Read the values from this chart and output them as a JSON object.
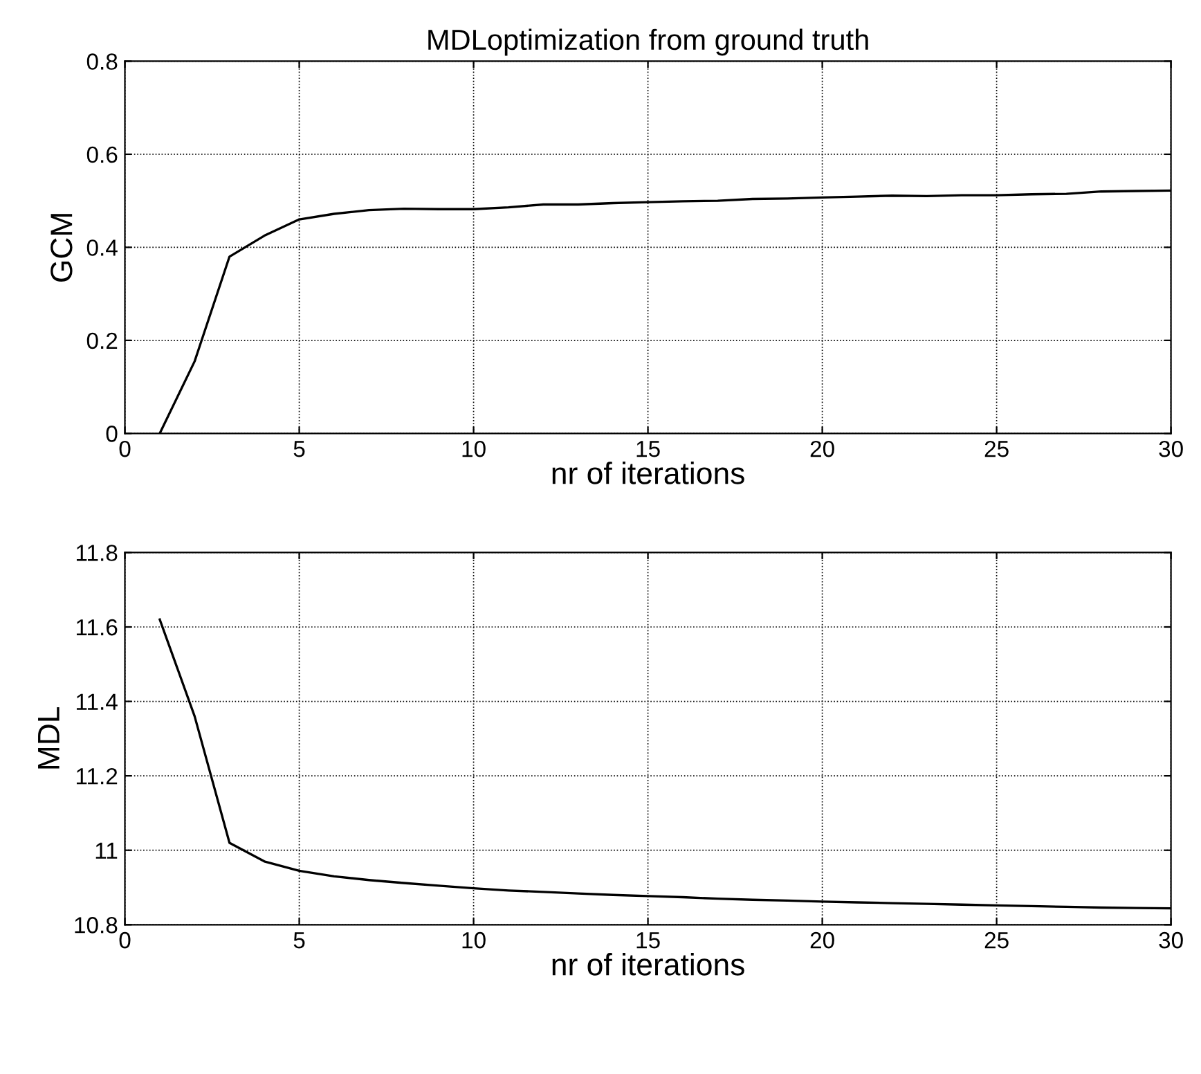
{
  "chart_data": [
    {
      "type": "line",
      "title": "MDLoptimization from ground truth",
      "xlabel": "nr of iterations",
      "ylabel": "GCM",
      "x": [
        1,
        2,
        3,
        4,
        5,
        6,
        7,
        8,
        9,
        10,
        11,
        12,
        13,
        14,
        15,
        16,
        17,
        18,
        19,
        20,
        21,
        22,
        23,
        24,
        25,
        26,
        27,
        28,
        29,
        30
      ],
      "series": [
        {
          "color": "#000000",
          "values": [
            0,
            0.155,
            0.38,
            0.425,
            0.46,
            0.472,
            0.48,
            0.483,
            0.482,
            0.482,
            0.486,
            0.492,
            0.492,
            0.495,
            0.497,
            0.499,
            0.5,
            0.504,
            0.505,
            0.507,
            0.509,
            0.511,
            0.51,
            0.512,
            0.512,
            0.514,
            0.515,
            0.52,
            0.521,
            0.522
          ]
        }
      ],
      "xlim": [
        0,
        30
      ],
      "xticks": [
        0,
        5,
        10,
        15,
        20,
        25,
        30
      ],
      "ylim": [
        0,
        0.8
      ],
      "yticks": [
        0,
        0.2,
        0.4,
        0.6,
        0.8
      ],
      "grid": true,
      "line_style": "solid",
      "marker": "none"
    },
    {
      "type": "line",
      "xlabel": "nr of iterations",
      "ylabel": "MDL",
      "x": [
        1,
        2,
        3,
        4,
        5,
        6,
        7,
        8,
        9,
        10,
        11,
        12,
        13,
        14,
        15,
        16,
        17,
        18,
        19,
        20,
        21,
        22,
        23,
        24,
        25,
        26,
        27,
        28,
        29,
        30
      ],
      "series": [
        {
          "color": "#000000",
          "values": [
            11.62,
            11.36,
            11.02,
            10.97,
            10.945,
            10.93,
            10.92,
            10.912,
            10.905,
            10.898,
            10.892,
            10.888,
            10.884,
            10.88,
            10.877,
            10.874,
            10.87,
            10.867,
            10.865,
            10.862,
            10.86,
            10.858,
            10.856,
            10.854,
            10.852,
            10.85,
            10.848,
            10.846,
            10.845,
            10.844
          ]
        }
      ],
      "xlim": [
        0,
        30
      ],
      "xticks": [
        0,
        5,
        10,
        15,
        20,
        25,
        30
      ],
      "ylim": [
        10.8,
        11.8
      ],
      "yticks": [
        10.8,
        11,
        11.2,
        11.4,
        11.6,
        11.8
      ],
      "grid": true,
      "line_style": "solid",
      "marker": "none"
    }
  ]
}
